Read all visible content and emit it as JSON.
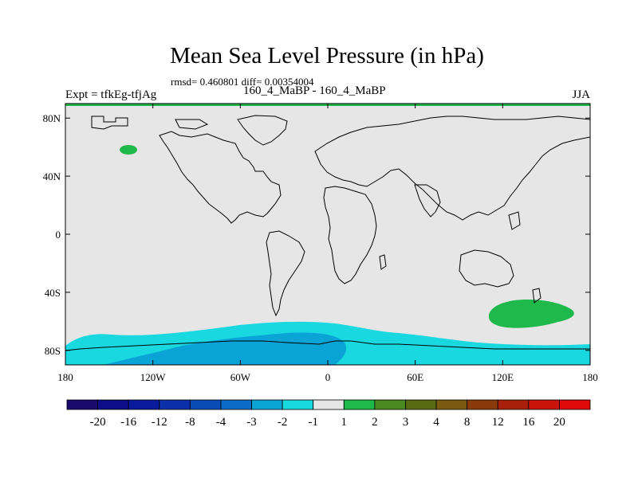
{
  "title": "Mean Sea Level Pressure (in hPa)",
  "stats": "rmsd= 0.460801 diff= 0.00354004",
  "left_label": "Expt = tfkEg-tfjAg",
  "center_label": "160_4_MaBP - 160_4_MaBP",
  "right_label": "JJA",
  "colors": {
    "land_ocean_background": "#e6e6e6",
    "coastline": "#000000",
    "top_band": "#1fb84a"
  },
  "chart_data": {
    "type": "heatmap",
    "projection": "cylindrical-equidistant",
    "x_range": [
      -180,
      180
    ],
    "y_range": [
      -90,
      90
    ],
    "x_ticks": [
      {
        "value": -180,
        "label": "180"
      },
      {
        "value": -120,
        "label": "120W"
      },
      {
        "value": -60,
        "label": "60W"
      },
      {
        "value": 0,
        "label": "0"
      },
      {
        "value": 60,
        "label": "60E"
      },
      {
        "value": 120,
        "label": "120E"
      },
      {
        "value": 180,
        "label": "180"
      }
    ],
    "y_ticks": [
      {
        "value": 80,
        "label": "80N"
      },
      {
        "value": 40,
        "label": "40N"
      },
      {
        "value": 0,
        "label": "0"
      },
      {
        "value": -40,
        "label": "40S"
      },
      {
        "value": -80,
        "label": "80S"
      }
    ],
    "colorbar": {
      "labels": [
        "-20",
        "-16",
        "-12",
        "-8",
        "-4",
        "-3",
        "-2",
        "-1",
        "1",
        "2",
        "3",
        "4",
        "8",
        "12",
        "16",
        "20"
      ],
      "colors": [
        "#1a0a6e",
        "#0d0d8a",
        "#0a1a9c",
        "#0b2fa8",
        "#0a4cb5",
        "#0a6cc4",
        "#0aa3d6",
        "#19d8e0",
        "#e6e6e6",
        "#1fb84a",
        "#4a8a20",
        "#5a6a14",
        "#7a5a10",
        "#8a3a0a",
        "#a8200a",
        "#c8140a",
        "#e00a0a"
      ]
    },
    "regions": [
      {
        "category": "-2 to -1",
        "description": "Southern Ocean negative anomaly band",
        "lon_range": [
          -180,
          180
        ],
        "lat_range": [
          -90,
          -60
        ]
      },
      {
        "category": "-3 to -2",
        "description": "Antarctic coast stronger negative anomaly",
        "lon_range": [
          -130,
          25
        ],
        "lat_range": [
          -90,
          -68
        ]
      },
      {
        "category": "1 to 2",
        "description": "Positive anomaly North Pacific",
        "lon_range": [
          -143,
          -131
        ],
        "lat_range": [
          55,
          62
        ]
      },
      {
        "category": "1 to 2",
        "description": "Positive anomaly south Indian Ocean / Australia south",
        "lon_range": [
          110,
          170
        ],
        "lat_range": [
          -68,
          -45
        ]
      }
    ]
  }
}
